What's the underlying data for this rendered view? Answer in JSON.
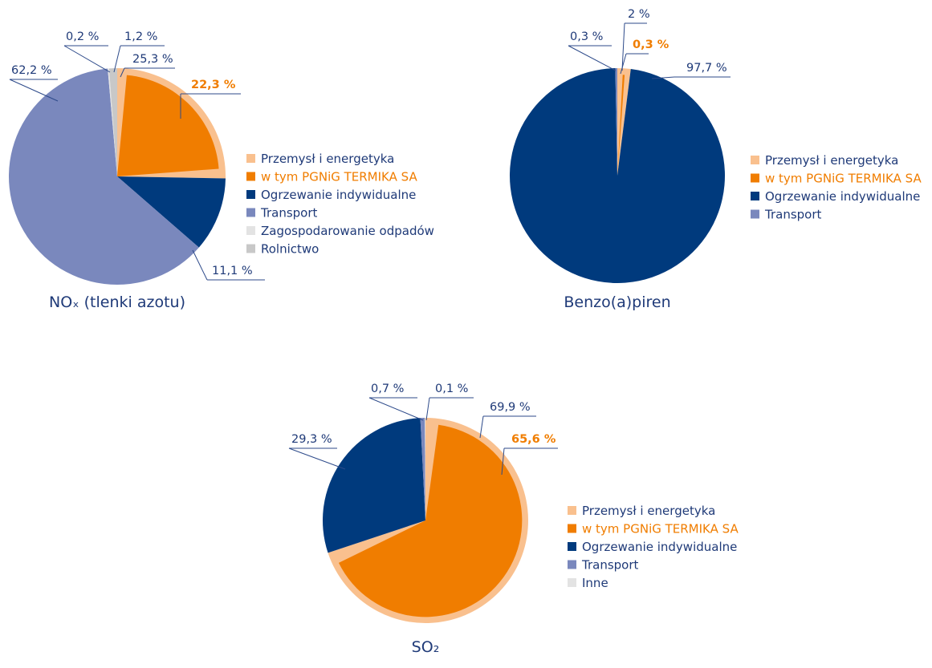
{
  "chart_data": [
    {
      "type": "pie",
      "title": "NOₓ (tlenki azotu)",
      "slices": [
        {
          "name": "Przemysł i energetyka",
          "value": 25.3,
          "value_label": "25,3 %",
          "color": "#f9c08e",
          "parts": [
            {
              "name": "w tym PGNiG TERMIKA SA",
              "value": 22.3,
              "value_label": "22,3 %",
              "color": "#f07d00"
            }
          ]
        },
        {
          "name": "Ogrzewanie indywidualne",
          "value": 11.1,
          "value_label": "11,1 %",
          "color": "#003a7d"
        },
        {
          "name": "Transport",
          "value": 62.2,
          "value_label": "62,2 %",
          "color": "#7a88bd"
        },
        {
          "name": "Zagospodarowanie odpadów",
          "value": 0.2,
          "value_label": "0,2 %",
          "color": "#e3e3e3"
        },
        {
          "name": "Rolnictwo",
          "value": 1.2,
          "value_label": "1,2 %",
          "color": "#c8c8c8"
        }
      ]
    },
    {
      "type": "pie",
      "title": "Benzo(a)piren",
      "slices": [
        {
          "name": "Przemysł i energetyka",
          "value": 2,
          "value_label": "2 %",
          "color": "#f9c08e",
          "parts": [
            {
              "name": "w tym PGNiG TERMIKA SA",
              "value": 0.3,
              "value_label": "0,3 %",
              "color": "#f07d00"
            }
          ]
        },
        {
          "name": "Ogrzewanie indywidualne",
          "value": 97.7,
          "value_label": "97,7 %",
          "color": "#003a7d"
        },
        {
          "name": "Transport",
          "value": 0.3,
          "value_label": "0,3 %",
          "color": "#7a88bd"
        }
      ]
    },
    {
      "type": "pie",
      "title": "SO₂",
      "slices": [
        {
          "name": "Przemysł i energetyka",
          "value": 69.9,
          "value_label": "69,9 %",
          "color": "#f9c08e",
          "parts": [
            {
              "name": "w tym PGNiG TERMIKA SA",
              "value": 65.6,
              "value_label": "65,6 %",
              "color": "#f07d00"
            }
          ]
        },
        {
          "name": "Ogrzewanie indywidualne",
          "value": 29.3,
          "value_label": "29,3 %",
          "color": "#003a7d"
        },
        {
          "name": "Transport",
          "value": 0.7,
          "value_label": "0,7 %",
          "color": "#7a88bd"
        },
        {
          "name": "Inne",
          "value": 0.1,
          "value_label": "0,1 %",
          "color": "#e3e3e3"
        }
      ]
    }
  ]
}
